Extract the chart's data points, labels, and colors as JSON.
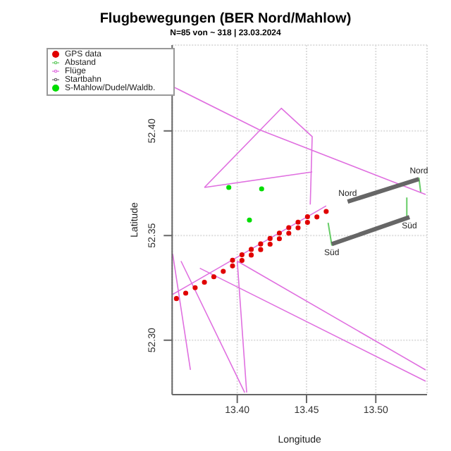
{
  "chart_data": {
    "type": "scatter",
    "title": "Flugbewegungen (BER Nord/Mahlow)",
    "subtitle": "N=85 von ~ 318 | 23.03.2024",
    "xlabel": "Longitude",
    "ylabel": "Latitude",
    "xlim": [
      13.353,
      13.537
    ],
    "ylim": [
      52.274,
      52.441
    ],
    "xticks": [
      {
        "value": 13.4,
        "label": "13.40"
      },
      {
        "value": 13.45,
        "label": "13.45"
      },
      {
        "value": 13.5,
        "label": "13.50"
      }
    ],
    "yticks": [
      {
        "value": 52.3,
        "label": "52.30"
      },
      {
        "value": 52.35,
        "label": "52.35"
      },
      {
        "value": 52.4,
        "label": "52.40"
      }
    ],
    "grid": true,
    "legend": "top left",
    "annotations": [
      {
        "text": "Nord",
        "x": 13.4797,
        "y": 52.3662
      },
      {
        "text": "Nord",
        "x": 13.5311,
        "y": 52.377
      },
      {
        "text": "Süd",
        "x": 13.4682,
        "y": 52.3459
      },
      {
        "text": "Süd",
        "x": 13.5243,
        "y": 52.3588
      }
    ],
    "series": [
      {
        "name": "GPS data",
        "marker": "circle",
        "color": "#e00000",
        "x": [
          13.3561,
          13.3628,
          13.3696,
          13.3763,
          13.3831,
          13.3899,
          13.3966,
          13.4034,
          13.4101,
          13.4169,
          13.4237,
          13.4304,
          13.4372,
          13.4439,
          13.4507,
          13.4575,
          13.4642,
          13.3966,
          13.4034,
          13.4101,
          13.4169,
          13.4237,
          13.4304,
          13.4372,
          13.4439,
          13.4507
        ],
        "values": [
          52.3199,
          52.3225,
          52.3251,
          52.3277,
          52.3303,
          52.3329,
          52.3355,
          52.3381,
          52.3407,
          52.3433,
          52.3459,
          52.3485,
          52.3511,
          52.3537,
          52.3563,
          52.3589,
          52.3615,
          52.3382,
          52.3408,
          52.3434,
          52.346,
          52.3486,
          52.3512,
          52.3538,
          52.3564,
          52.359
        ]
      },
      {
        "name": "Abstand",
        "type": "line",
        "color": "#66cc66",
        "x": [
          13.4683,
          13.4656,
          null,
          13.5311,
          13.5325,
          null,
          13.5224,
          13.5224
        ],
        "values": [
          52.3452,
          52.3561,
          null,
          52.3777,
          52.3703,
          null,
          52.3682,
          52.3581
        ]
      },
      {
        "name": "Flüge",
        "type": "line",
        "color": "#e070e0",
        "x": [
          13.354,
          13.4155,
          13.536,
          null,
          13.3763,
          13.4318,
          13.4541,
          13.4527,
          null,
          13.3763,
          13.4541,
          null,
          13.3594,
          13.4054,
          null,
          13.4,
          13.4068,
          null,
          13.4,
          13.536,
          null,
          13.373,
          13.536,
          null,
          13.3534,
          13.3662,
          null,
          13.3534,
          13.4642
        ],
        "values": [
          52.421,
          52.4007,
          52.3696,
          null,
          52.373,
          52.4108,
          52.3973,
          52.3648,
          null,
          52.373,
          52.3804,
          null,
          52.3378,
          52.275,
          null,
          52.3378,
          52.275,
          null,
          52.3378,
          52.2858,
          null,
          52.3344,
          52.2804,
          null,
          52.3412,
          52.2858,
          null,
          52.3219,
          52.3642
        ]
      },
      {
        "name": "Startbahn",
        "type": "line",
        "color": "#666666",
        "x": [
          13.4797,
          13.5311,
          null,
          13.4682,
          13.5243
        ],
        "values": [
          52.3662,
          52.377,
          null,
          52.3459,
          52.3588
        ]
      },
      {
        "name": "S-Mahlow/Dudel/Waldb.",
        "marker": "circle",
        "color": "#00dd00",
        "x": [
          13.3939,
          13.4176,
          13.4088
        ],
        "values": [
          52.373,
          52.3723,
          52.3574
        ]
      }
    ]
  }
}
